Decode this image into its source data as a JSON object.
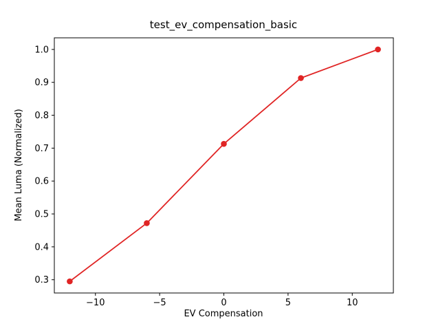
{
  "chart_data": {
    "type": "line",
    "title": "test_ev_compensation_basic",
    "xlabel": "EV Compensation",
    "ylabel": "Mean Luma (Normalized)",
    "x": [
      -12,
      -6,
      0,
      6,
      12
    ],
    "y": [
      0.295,
      0.472,
      0.713,
      0.913,
      1.0
    ],
    "x_ticks": [
      -10,
      -5,
      0,
      5,
      10
    ],
    "y_ticks": [
      0.3,
      0.4,
      0.5,
      0.6,
      0.7,
      0.8,
      0.9,
      1.0
    ],
    "xlim": [
      -13.2,
      13.2
    ],
    "ylim": [
      0.2597,
      1.0353
    ],
    "line_color": "#e02424",
    "marker": "circle",
    "marker_color": "#e02424",
    "grid": false,
    "legend": null,
    "background_color": "#ffffff",
    "spine_color": "#000000"
  }
}
